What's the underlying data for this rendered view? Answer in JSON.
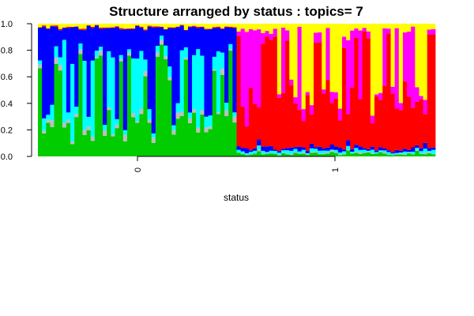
{
  "chart_data": {
    "type": "bar",
    "stacked": true,
    "title": "Structure arranged by status : topics= 7",
    "xlabel": "status",
    "ylabel": "",
    "ylim": [
      0,
      1
    ],
    "yticks": [
      "0.0",
      "0.2",
      "0.4",
      "0.6",
      "0.8",
      "1.0"
    ],
    "yticks_values": [
      0,
      0.2,
      0.4,
      0.6,
      0.8,
      1.0
    ],
    "group_labels": [
      "0",
      "1"
    ],
    "group_label_rotation": "vertical",
    "topic_colors": [
      "#00cc00",
      "#bebebe",
      "#00ffff",
      "#0000ff",
      "#ff0000",
      "#ff00ff",
      "#ffff00"
    ],
    "groups": [
      {
        "label": "0",
        "samples": 49,
        "dominant_topics": [
          0,
          3,
          2
        ],
        "approx_proportions": {
          "topic_green": 0.45,
          "topic_gray": 0.05,
          "topic_cyan": 0.12,
          "topic_blue": 0.32,
          "topic_red": 0.01,
          "topic_magenta": 0.0,
          "topic_yellow": 0.05
        }
      },
      {
        "label": "1",
        "samples": 49,
        "dominant_topics": [
          4,
          5,
          6
        ],
        "approx_proportions": {
          "topic_green": 0.04,
          "topic_gray": 0.01,
          "topic_cyan": 0.03,
          "topic_blue": 0.04,
          "topic_red": 0.68,
          "topic_magenta": 0.1,
          "topic_yellow": 0.1
        }
      }
    ]
  }
}
